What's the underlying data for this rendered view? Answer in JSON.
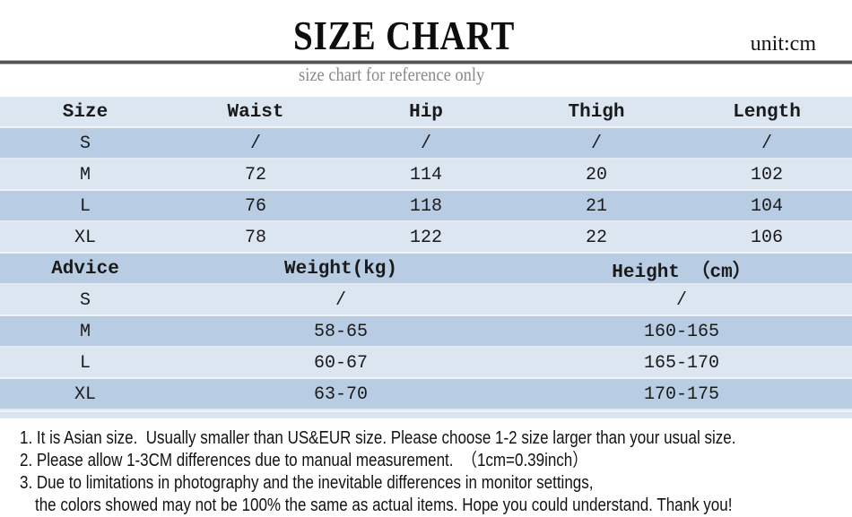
{
  "header": {
    "title": "SIZE CHART",
    "unit_label": "unit:cm",
    "subtitle": "size chart for reference only"
  },
  "chart_data": [
    {
      "type": "table",
      "name": "garment-measurements",
      "columns": [
        "Size",
        "Waist",
        "Hip",
        "Thigh",
        "Length"
      ],
      "rows": [
        [
          "S",
          "/",
          "/",
          "/",
          "/"
        ],
        [
          "M",
          "72",
          "114",
          "20",
          "102"
        ],
        [
          "L",
          "76",
          "118",
          "21",
          "104"
        ],
        [
          "XL",
          "78",
          "122",
          "22",
          "106"
        ]
      ]
    },
    {
      "type": "table",
      "name": "size-advice",
      "columns": [
        "Advice",
        "Weight(kg)",
        "Height （cm）"
      ],
      "rows": [
        [
          "S",
          "/",
          "/"
        ],
        [
          "M",
          "58-65",
          "160-165"
        ],
        [
          "L",
          "60-67",
          "165-170"
        ],
        [
          "XL",
          "63-70",
          "170-175"
        ]
      ]
    }
  ],
  "notes": {
    "lines": [
      "1. It is Asian size.  Usually smaller than US&EUR size. Please choose 1-2 size larger than your usual size.",
      "2. Please allow 1-3CM differences due to manual measurement.  （1cm=0.39inch）",
      "3. Due to limitations in photography and the inevitable differences in monitor settings,",
      "the colors showed may not be 100% the same as actual items. Hope you could understand. Thank you!"
    ]
  },
  "colors": {
    "row_light": "#dce6f1",
    "row_medium": "#b8cce4",
    "divider_line": "#545454",
    "subtitle_gray": "#8a8a8a"
  }
}
